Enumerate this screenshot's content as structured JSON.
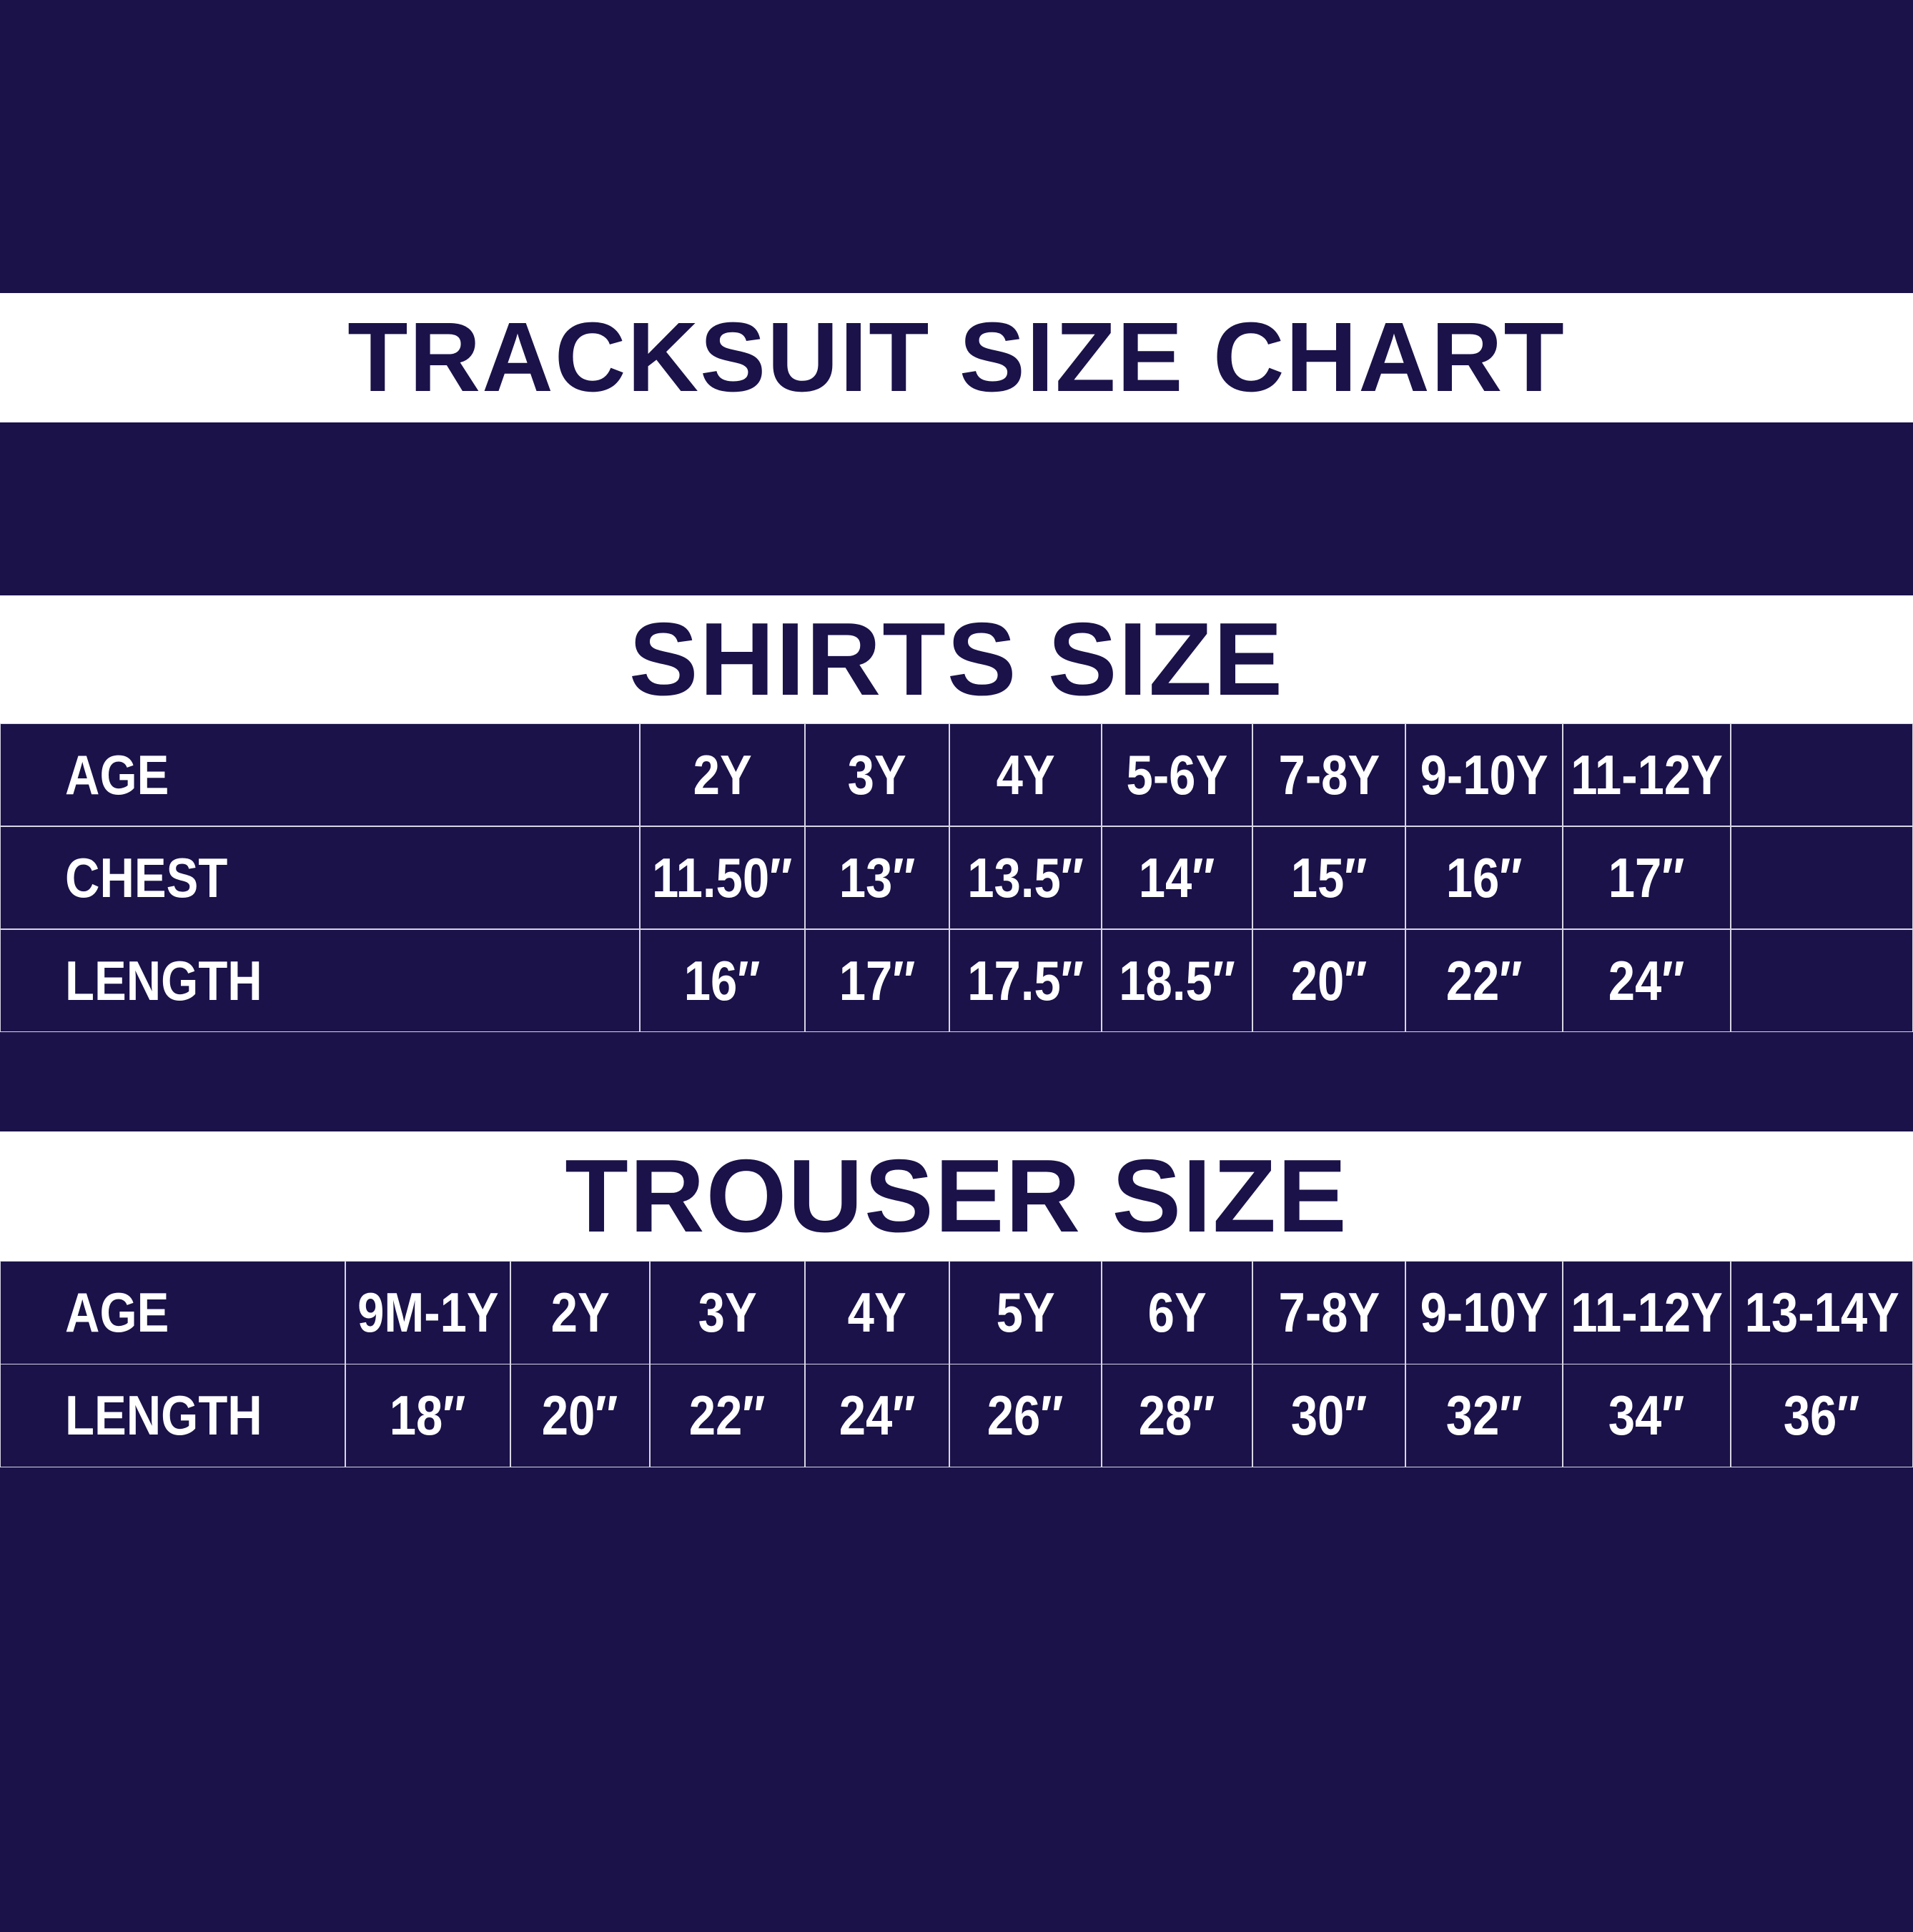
{
  "title": "TRACKSUIT SIZE CHART",
  "colors": {
    "background": "#1a1249",
    "band": "#ffffff",
    "text_on_navy": "#ffffff"
  },
  "shirts": {
    "heading": "SHIRTS SIZE",
    "rows": [
      {
        "label": "AGE",
        "values": [
          "2Y",
          "3Y",
          "4Y",
          "5-6Y",
          "7-8Y",
          "9-10Y",
          "11-12Y",
          ""
        ]
      },
      {
        "label": "CHEST",
        "values": [
          "11.50″",
          "13″",
          "13.5″",
          "14″",
          "15″",
          "16″",
          "17″",
          ""
        ]
      },
      {
        "label": "LENGTH",
        "values": [
          "16″",
          "17″",
          "17.5″",
          "18.5″",
          "20″",
          "22″",
          "24″",
          ""
        ]
      }
    ]
  },
  "trousers": {
    "heading": "TROUSER SIZE",
    "rows": [
      {
        "label": "AGE",
        "values": [
          "9M-1Y",
          "2Y",
          "3Y",
          "4Y",
          "5Y",
          "6Y",
          "7-8Y",
          "9-10Y",
          "11-12Y",
          "13-14Y"
        ]
      },
      {
        "label": "LENGTH",
        "values": [
          "18″",
          "20″",
          "22″",
          "24″",
          "26″",
          "28″",
          "30″",
          "32″",
          "34″",
          "36″"
        ]
      }
    ]
  }
}
